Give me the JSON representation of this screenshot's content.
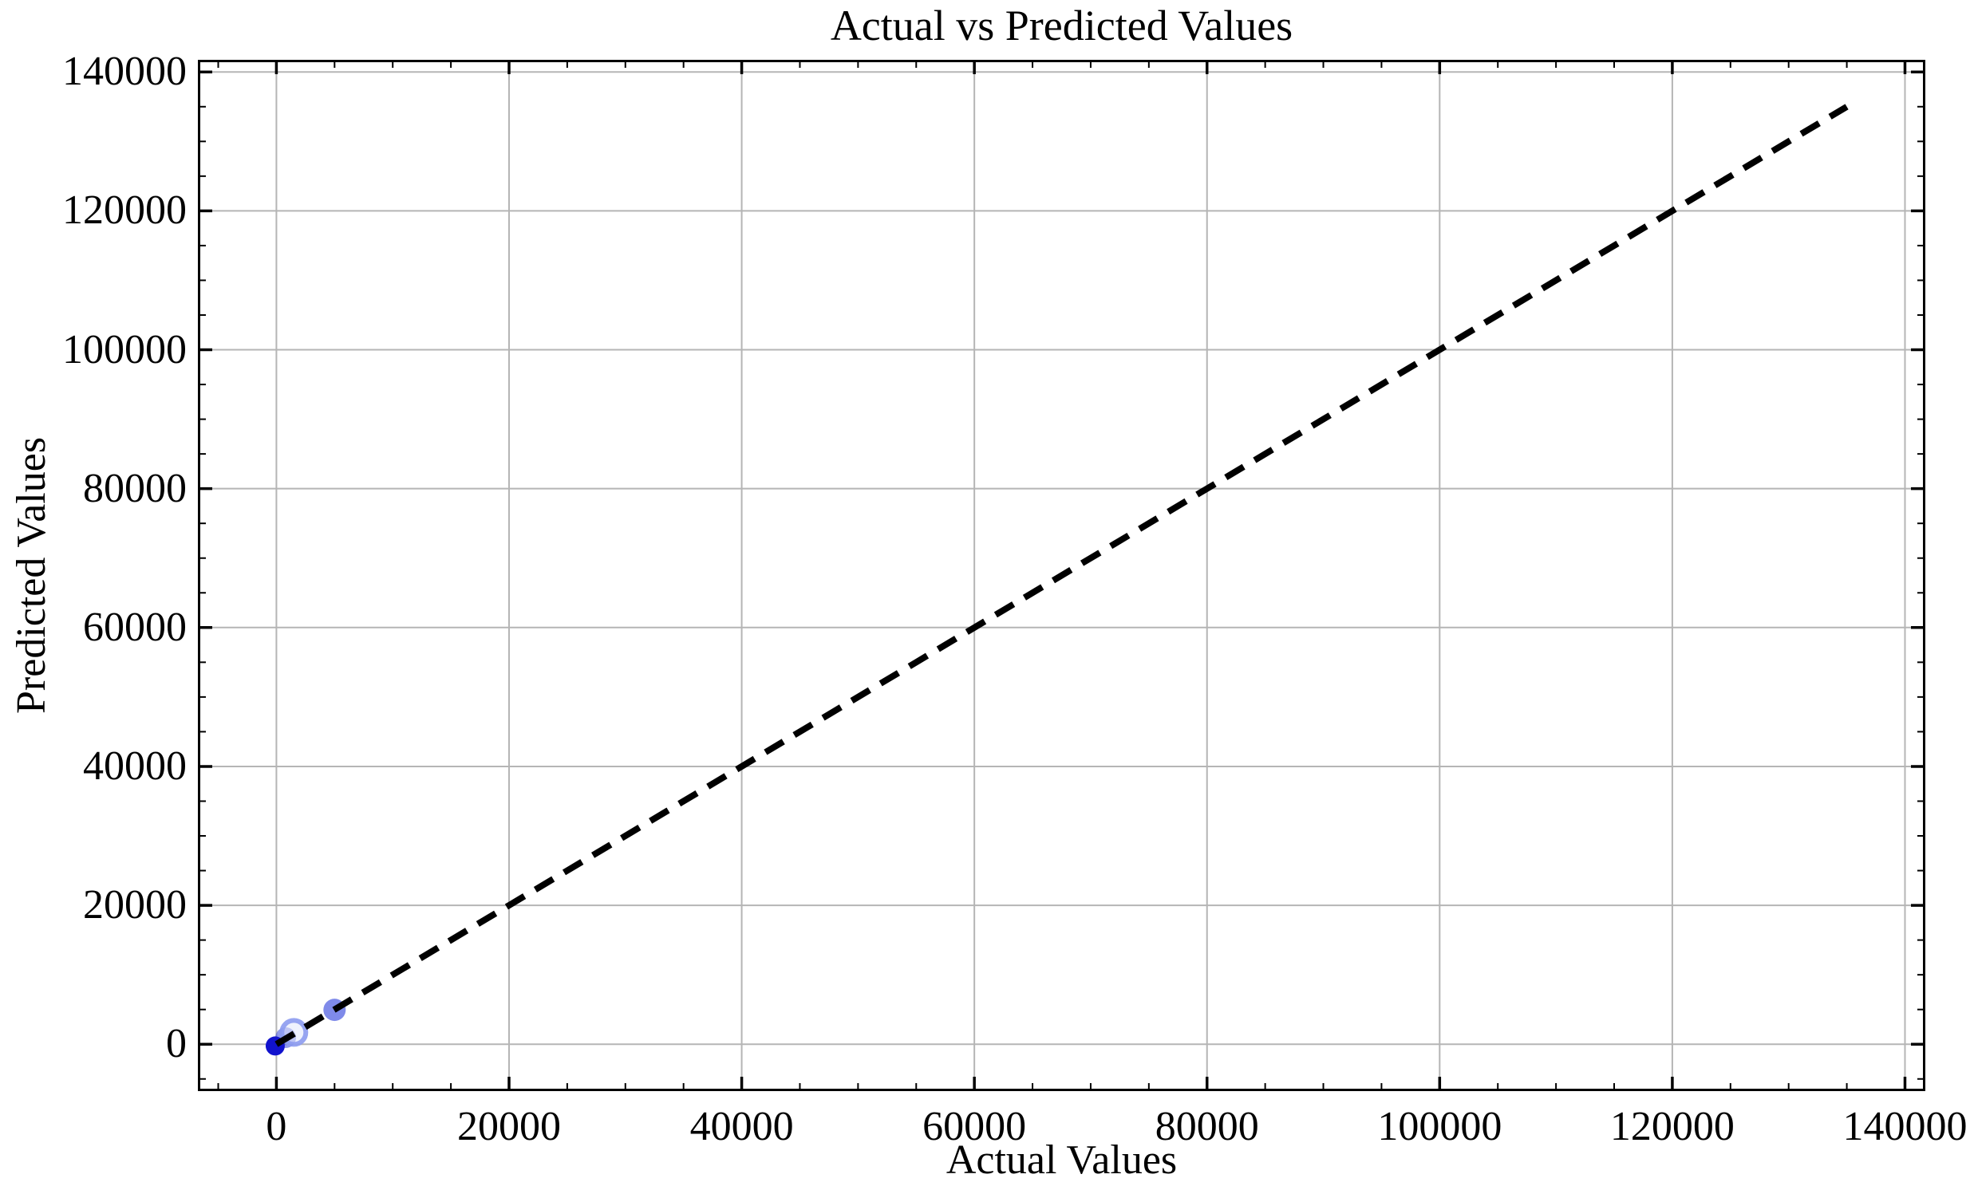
{
  "chart_data": {
    "type": "scatter",
    "title": "Actual vs Predicted Values",
    "xlabel": "Actual Values",
    "ylabel": "Predicted Values",
    "xlim": [
      -6750,
      141750
    ],
    "ylim": [
      -6750,
      141750
    ],
    "x_ticks": [
      0,
      20000,
      40000,
      60000,
      80000,
      100000,
      120000,
      140000
    ],
    "y_ticks": [
      0,
      20000,
      40000,
      60000,
      80000,
      100000,
      120000,
      140000
    ],
    "minor_tick_step": 5000,
    "major_tick_step": 20000,
    "grid": true,
    "legend": "none",
    "points": [
      {
        "x": 800,
        "y": 950,
        "r": 13,
        "fill": "rgba(55,70,215,0.55)"
      },
      {
        "x": 1500,
        "y": 1700,
        "r": 15,
        "fill": "rgba(226,231,252,0.55)",
        "stroke": "rgba(140,155,240,0.9)",
        "stroke_width": 6
      },
      {
        "x": -100,
        "y": -250,
        "r": 12,
        "fill": "rgba(17,18,205,1)"
      },
      {
        "x": 5000,
        "y": 4950,
        "r": 14,
        "fill": "rgba(72,88,224,0.7)"
      }
    ],
    "reference_line": {
      "x1": 0,
      "y1": 0,
      "x2": 135000,
      "y2": 135000,
      "style": "dashed",
      "color": "#000000",
      "width": 8,
      "dash": [
        26,
        16
      ]
    },
    "colors": {
      "background": "#ffffff",
      "grid": "#b5b5b5",
      "spine": "#000000",
      "tick": "#000000",
      "marker_base": "#0000ff"
    }
  }
}
